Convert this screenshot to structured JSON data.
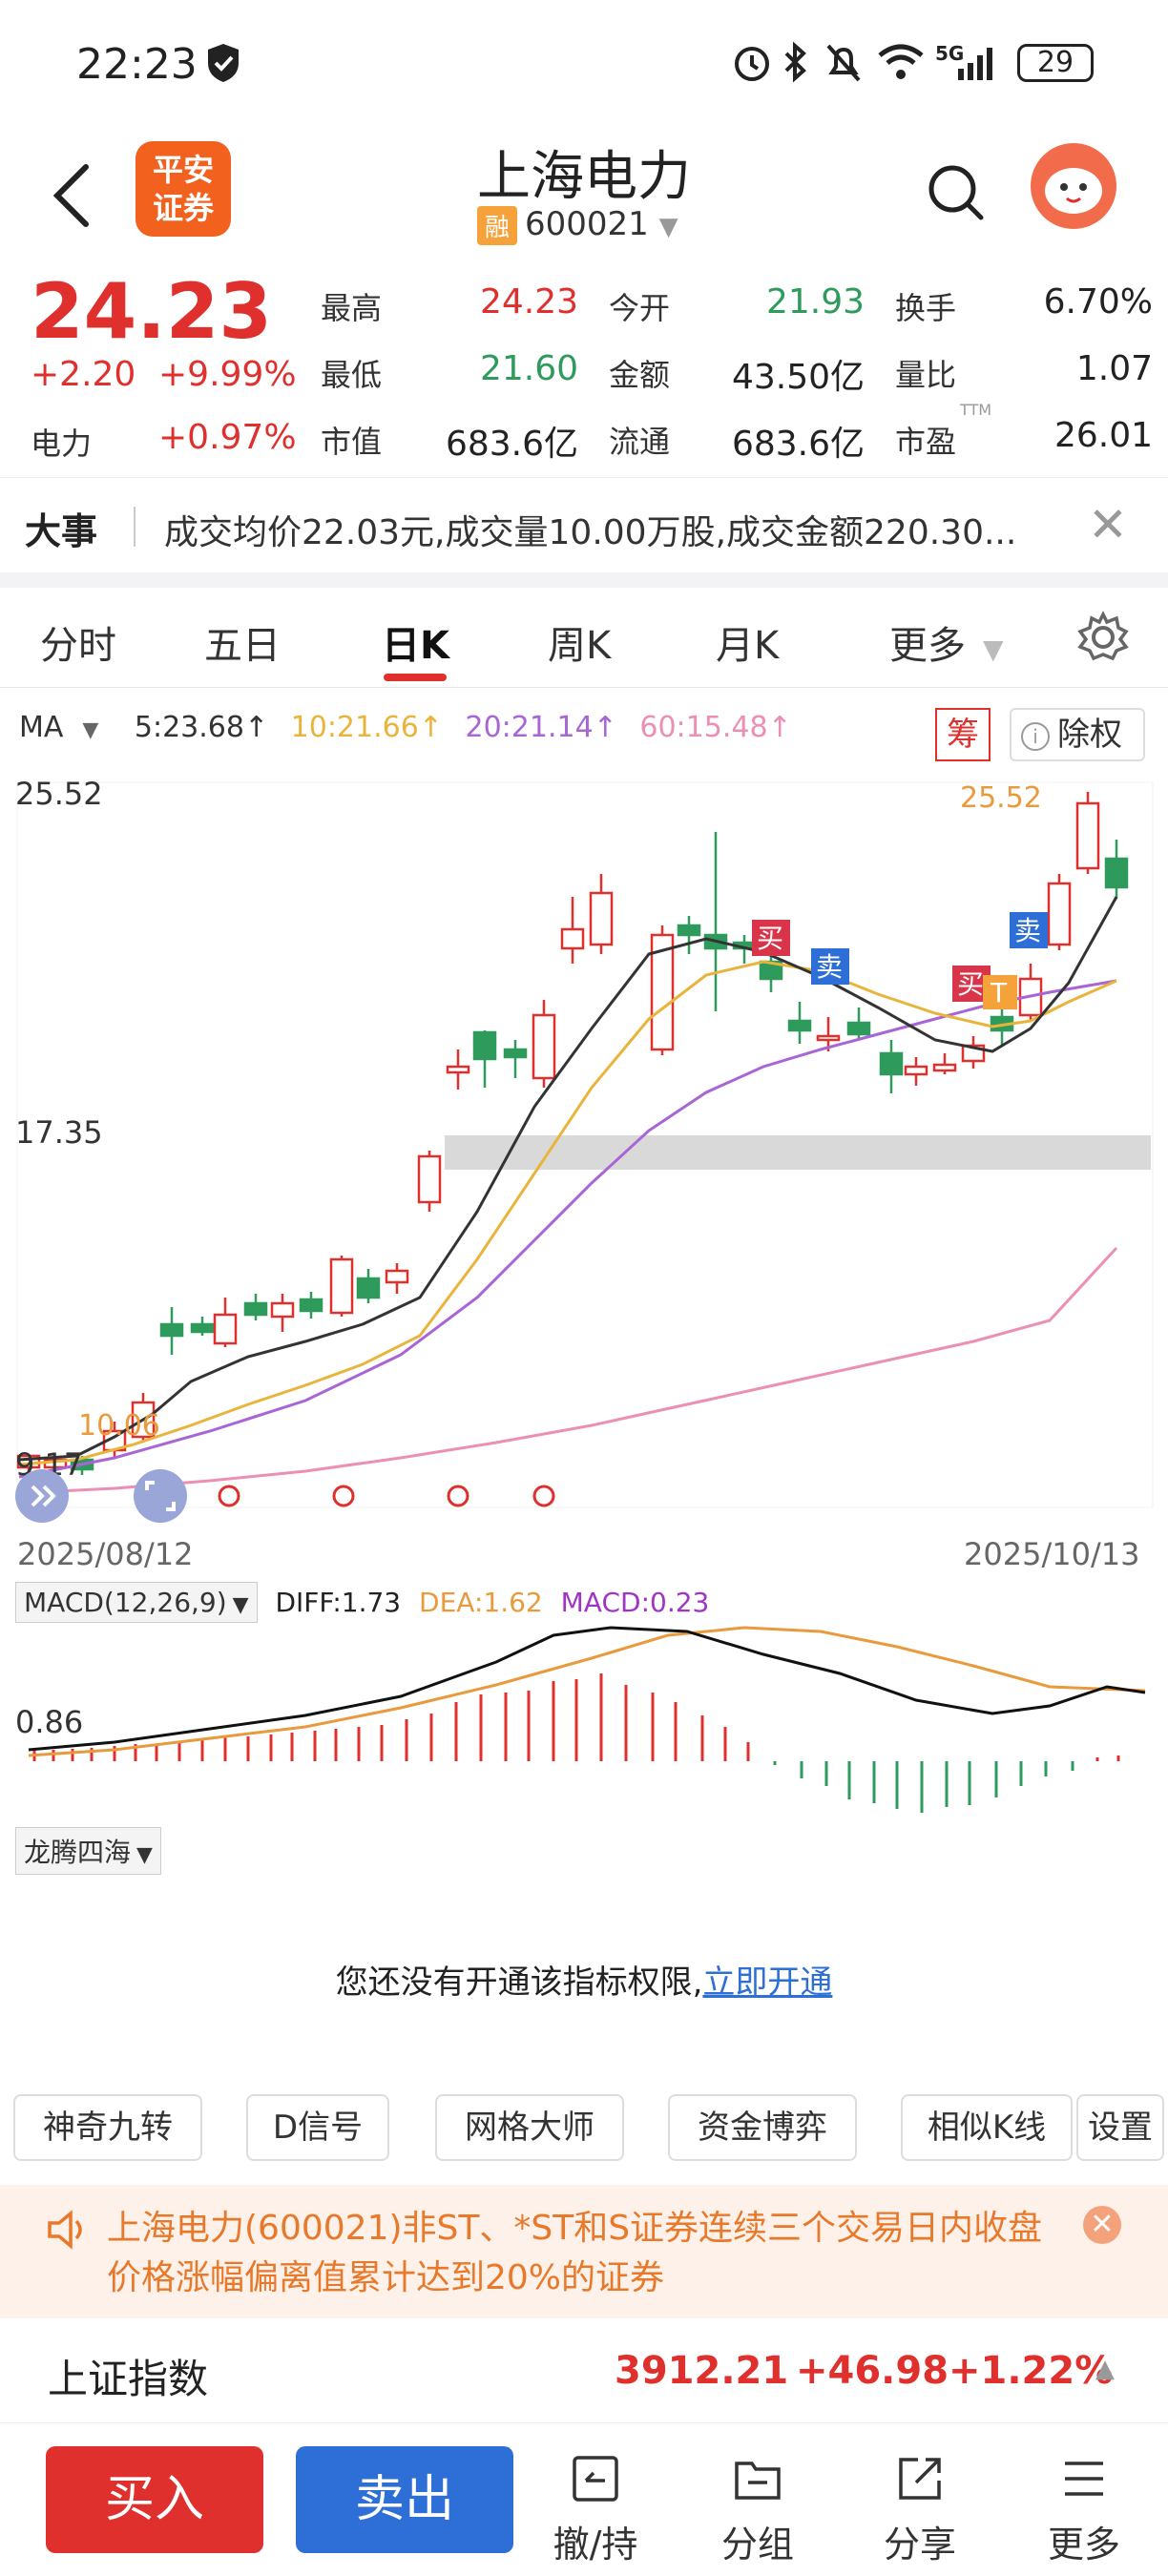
{
  "status": {
    "time": "22:23",
    "battery": "29",
    "network": "5G"
  },
  "header": {
    "broker_logo": "平安\n证券",
    "title": "上海电力",
    "badge": "融",
    "code": "600021"
  },
  "quote": {
    "price": "24.23",
    "change": "+2.20",
    "change_pct": "+9.99%",
    "sector_name": "电力",
    "sector_pct": "+0.97%",
    "fields": [
      {
        "label": "最高",
        "value": "24.23",
        "color": "#e0302d"
      },
      {
        "label": "今开",
        "value": "21.93",
        "color": "#2e9b5c"
      },
      {
        "label": "换手",
        "value": "6.70%",
        "color": "#222222"
      },
      {
        "label": "最低",
        "value": "21.60",
        "color": "#2e9b5c"
      },
      {
        "label": "金额",
        "value": "43.50亿",
        "color": "#222222"
      },
      {
        "label": "量比",
        "value": "1.07",
        "color": "#222222"
      },
      {
        "label": "市值",
        "value": "683.6亿",
        "color": "#222222"
      },
      {
        "label": "流通",
        "value": "683.6亿",
        "color": "#222222"
      },
      {
        "label": "市盈",
        "value": "26.01",
        "color": "#222222",
        "sup": "TTM"
      }
    ]
  },
  "news": {
    "tag": "大事",
    "text": "成交均价22.03元,成交量10.00万股,成交金额220.30..."
  },
  "tabs": [
    {
      "label": "分时",
      "active": false
    },
    {
      "label": "五日",
      "active": false
    },
    {
      "label": "日K",
      "active": true
    },
    {
      "label": "周K",
      "active": false
    },
    {
      "label": "月K",
      "active": false
    },
    {
      "label": "更多",
      "active": false
    }
  ],
  "ma": {
    "label": "MA",
    "items": [
      {
        "text": "5:23.68↑",
        "color": "#333333"
      },
      {
        "text": "10:21.66↑",
        "color": "#e9b43c"
      },
      {
        "text": "20:21.14↑",
        "color": "#a765d6"
      },
      {
        "text": "60:15.48↑",
        "color": "#ec8fb4"
      }
    ],
    "chou": "筹",
    "chuquan": "除权"
  },
  "chart_data": {
    "type": "candlestick",
    "period": "daily",
    "date_range": [
      "2025/08/12",
      "2025/10/13"
    ],
    "y_axis_labels": [
      "25.52",
      "17.35",
      "9.17"
    ],
    "annotations": {
      "high_label": "25.52",
      "low_label": "10.06",
      "markers": [
        "买",
        "卖",
        "买",
        "卖",
        "T"
      ]
    },
    "ma_lines": [
      "MA5",
      "MA10",
      "MA20",
      "MA60"
    ]
  },
  "macd": {
    "selector": "MACD(12,26,9)",
    "diff": "DIFF:1.73",
    "dea": "DEA:1.62",
    "macd": "MACD:0.23",
    "axis_label": "0.86"
  },
  "indicator": {
    "selector": "龙腾四海",
    "message": "您还没有开通该指标权限,",
    "link": "立即开通"
  },
  "tools": [
    "神奇九转",
    "D信号",
    "网格大师",
    "资金博弈",
    "相似K线",
    "设置"
  ],
  "warning": {
    "text": "上海电力(600021)非ST、*ST和S证券连续三个交易日内收盘价格涨幅偏离值累计达到20%的证券"
  },
  "index": {
    "name": "上证指数",
    "value": "3912.21",
    "change": "+46.98",
    "change_pct": "+1.22%"
  },
  "bottom": {
    "buy": "买入",
    "sell": "卖出",
    "items": [
      "撤/持",
      "分组",
      "分享",
      "更多"
    ]
  }
}
